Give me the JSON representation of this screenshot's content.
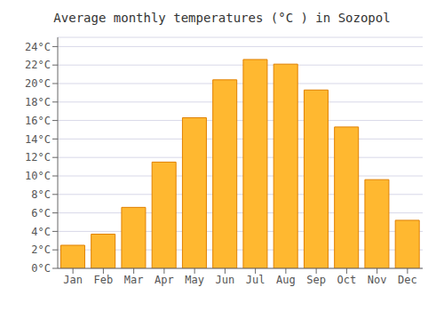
{
  "chart_data": {
    "type": "bar",
    "title": "Average monthly temperatures (°C ) in Sozopol",
    "categories": [
      "Jan",
      "Feb",
      "Mar",
      "Apr",
      "May",
      "Jun",
      "Jul",
      "Aug",
      "Sep",
      "Oct",
      "Nov",
      "Dec"
    ],
    "values": [
      2.5,
      3.7,
      6.6,
      11.5,
      16.3,
      20.4,
      22.6,
      22.1,
      19.3,
      15.3,
      9.6,
      5.2
    ],
    "color": "#FFB830",
    "ylim": [
      0,
      25
    ],
    "yticks": [
      {
        "value": 0,
        "label": "0°C"
      },
      {
        "value": 2,
        "label": "2°C"
      },
      {
        "value": 4,
        "label": "4°C"
      },
      {
        "value": 6,
        "label": "6°C"
      },
      {
        "value": 8,
        "label": "8°C"
      },
      {
        "value": 10,
        "label": "10°C"
      },
      {
        "value": 12,
        "label": "12°C"
      },
      {
        "value": 14,
        "label": "14°C"
      },
      {
        "value": 16,
        "label": "16°C"
      },
      {
        "value": 18,
        "label": "18°C"
      },
      {
        "value": 20,
        "label": "20°C"
      },
      {
        "value": 22,
        "label": "22°C"
      },
      {
        "value": 24,
        "label": "24°C"
      }
    ],
    "grid": true
  }
}
